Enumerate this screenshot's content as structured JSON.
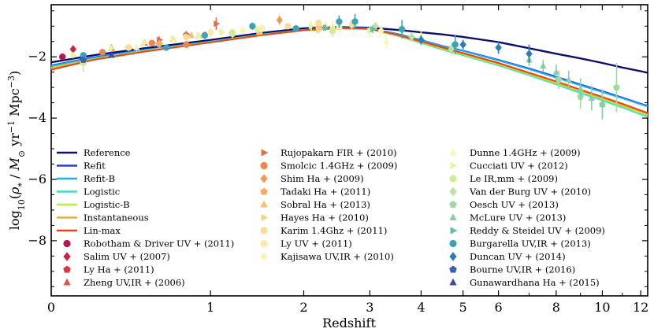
{
  "chart_data": {
    "type": "line",
    "title": "",
    "xlabel": "Redshift",
    "ylabel_parts": [
      "log",
      "10",
      "(",
      "ρ",
      "*",
      " / ",
      "M",
      "⊙",
      " yr",
      "−1",
      " Mpc",
      "−3",
      ")"
    ],
    "xscale": "log(1+z)",
    "xlim": [
      0,
      12.4
    ],
    "ylim": [
      -9.8,
      -0.3
    ],
    "xticks": [
      0,
      1,
      2,
      3,
      4,
      5,
      6,
      8,
      10,
      12
    ],
    "yticks": [
      -2,
      -4,
      -6,
      -8
    ],
    "ytick_labels": [
      "−2",
      "−4",
      "−6",
      "−8"
    ],
    "legend_position": "lower-left, three columns",
    "series": [
      {
        "name": "Reference",
        "color": "#0b0f6e",
        "width": 2.4,
        "points": [
          [
            0,
            -2.18
          ],
          [
            0.2,
            -1.95
          ],
          [
            0.5,
            -1.72
          ],
          [
            1,
            -1.45
          ],
          [
            1.5,
            -1.22
          ],
          [
            2,
            -1.07
          ],
          [
            2.5,
            -1.03
          ],
          [
            3,
            -1.05
          ],
          [
            3.5,
            -1.12
          ],
          [
            4,
            -1.2
          ],
          [
            4.5,
            -1.27
          ],
          [
            5,
            -1.35
          ],
          [
            6,
            -1.52
          ],
          [
            7,
            -1.72
          ],
          [
            8,
            -1.9
          ],
          [
            9,
            -2.05
          ],
          [
            10,
            -2.2
          ],
          [
            11,
            -2.35
          ],
          [
            12,
            -2.47
          ],
          [
            12.4,
            -2.52
          ]
        ]
      },
      {
        "name": "Refit",
        "color": "#1e3ee6",
        "width": 2,
        "points": [
          [
            0,
            -2.28
          ],
          [
            0.2,
            -2.02
          ],
          [
            0.5,
            -1.77
          ],
          [
            1,
            -1.5
          ],
          [
            1.5,
            -1.27
          ],
          [
            2,
            -1.12
          ],
          [
            2.5,
            -1.05
          ],
          [
            3,
            -1.07
          ],
          [
            3.5,
            -1.25
          ],
          [
            4,
            -1.45
          ],
          [
            4.5,
            -1.65
          ],
          [
            5,
            -1.8
          ],
          [
            6,
            -2.1
          ],
          [
            7,
            -2.38
          ],
          [
            8,
            -2.65
          ],
          [
            9,
            -2.9
          ],
          [
            10,
            -3.12
          ],
          [
            11,
            -3.33
          ],
          [
            12,
            -3.53
          ],
          [
            12.4,
            -3.6
          ]
        ]
      },
      {
        "name": "Refit-B",
        "color": "#1ab0f0",
        "width": 2,
        "points": [
          [
            0,
            -2.3
          ],
          [
            0.2,
            -2.04
          ],
          [
            0.5,
            -1.78
          ],
          [
            1,
            -1.5
          ],
          [
            1.5,
            -1.27
          ],
          [
            2,
            -1.12
          ],
          [
            2.5,
            -1.05
          ],
          [
            3,
            -1.07
          ],
          [
            3.5,
            -1.26
          ],
          [
            4,
            -1.46
          ],
          [
            4.5,
            -1.66
          ],
          [
            5,
            -1.81
          ],
          [
            6,
            -2.12
          ],
          [
            7,
            -2.4
          ],
          [
            8,
            -2.68
          ],
          [
            9,
            -2.93
          ],
          [
            10,
            -3.15
          ],
          [
            11,
            -3.35
          ],
          [
            12,
            -3.55
          ],
          [
            12.4,
            -3.62
          ]
        ]
      },
      {
        "name": "Logistic",
        "color": "#3fe0c0",
        "width": 2,
        "points": [
          [
            0,
            -2.35
          ],
          [
            0.2,
            -2.07
          ],
          [
            0.5,
            -1.8
          ],
          [
            1,
            -1.52
          ],
          [
            1.5,
            -1.28
          ],
          [
            2,
            -1.13
          ],
          [
            2.5,
            -1.07
          ],
          [
            3,
            -1.1
          ],
          [
            3.5,
            -1.31
          ],
          [
            4,
            -1.55
          ],
          [
            4.5,
            -1.77
          ],
          [
            5,
            -1.95
          ],
          [
            6,
            -2.28
          ],
          [
            7,
            -2.6
          ],
          [
            8,
            -2.9
          ],
          [
            9,
            -3.18
          ],
          [
            10,
            -3.42
          ],
          [
            11,
            -3.65
          ],
          [
            12,
            -3.88
          ],
          [
            12.4,
            -3.95
          ]
        ]
      },
      {
        "name": "Logistic-B",
        "color": "#b7f03a",
        "width": 2,
        "points": [
          [
            0,
            -2.36
          ],
          [
            0.2,
            -2.08
          ],
          [
            0.5,
            -1.81
          ],
          [
            1,
            -1.52
          ],
          [
            1.5,
            -1.28
          ],
          [
            2,
            -1.13
          ],
          [
            2.5,
            -1.07
          ],
          [
            3,
            -1.1
          ],
          [
            3.5,
            -1.3
          ],
          [
            4,
            -1.53
          ],
          [
            4.5,
            -1.74
          ],
          [
            5,
            -1.92
          ],
          [
            6,
            -2.24
          ],
          [
            7,
            -2.56
          ],
          [
            8,
            -2.86
          ],
          [
            9,
            -3.12
          ],
          [
            10,
            -3.37
          ],
          [
            11,
            -3.6
          ],
          [
            12,
            -3.82
          ],
          [
            12.4,
            -3.9
          ]
        ]
      },
      {
        "name": "Instantaneous",
        "color": "#f2b020",
        "width": 2,
        "points": [
          [
            0,
            -2.38
          ],
          [
            0.2,
            -2.09
          ],
          [
            0.5,
            -1.82
          ],
          [
            1,
            -1.53
          ],
          [
            1.5,
            -1.29
          ],
          [
            2,
            -1.14
          ],
          [
            2.5,
            -1.07
          ],
          [
            3,
            -1.09
          ],
          [
            3.5,
            -1.29
          ],
          [
            4,
            -1.52
          ],
          [
            4.5,
            -1.72
          ],
          [
            5,
            -1.9
          ],
          [
            6,
            -2.22
          ],
          [
            7,
            -2.54
          ],
          [
            8,
            -2.83
          ],
          [
            9,
            -3.1
          ],
          [
            10,
            -3.34
          ],
          [
            11,
            -3.57
          ],
          [
            12,
            -3.78
          ],
          [
            12.4,
            -3.86
          ]
        ]
      },
      {
        "name": "Lin-max",
        "color": "#e84418",
        "width": 2,
        "points": [
          [
            0,
            -2.42
          ],
          [
            0.2,
            -2.1
          ],
          [
            0.5,
            -1.83
          ],
          [
            1,
            -1.53
          ],
          [
            1.5,
            -1.29
          ],
          [
            2,
            -1.13
          ],
          [
            2.5,
            -1.06
          ],
          [
            3,
            -1.08
          ],
          [
            3.5,
            -1.28
          ],
          [
            4,
            -1.5
          ],
          [
            4.5,
            -1.7
          ],
          [
            5,
            -1.88
          ],
          [
            6,
            -2.2
          ],
          [
            7,
            -2.52
          ],
          [
            8,
            -2.8
          ],
          [
            9,
            -3.07
          ],
          [
            10,
            -3.31
          ],
          [
            11,
            -3.53
          ],
          [
            12,
            -3.75
          ],
          [
            12.4,
            -3.83
          ]
        ]
      }
    ],
    "observations": [
      {
        "name": "Robotham & Driver UV + (2011)",
        "marker": "circle",
        "color": "#b5174a",
        "points": [
          [
            0.05,
            -2.0,
            0.1
          ]
        ]
      },
      {
        "name": "Salim UV + (2007)",
        "marker": "diamond",
        "color": "#c8243f",
        "points": [
          [
            0.1,
            -1.75,
            0.08
          ]
        ]
      },
      {
        "name": "Ly Ha + (2011)",
        "marker": "pentagon",
        "color": "#d63a44",
        "points": [
          [
            0.8,
            -1.3,
            0.1
          ]
        ]
      },
      {
        "name": "Zheng UV,IR + (2006)",
        "marker": "triangle",
        "color": "#e25545",
        "points": [
          [
            0.3,
            -1.72,
            0.12
          ],
          [
            0.5,
            -1.55,
            0.1
          ],
          [
            0.7,
            -1.42,
            0.1
          ],
          [
            0.9,
            -1.32,
            0.1
          ]
        ]
      },
      {
        "name": "Rujopakarn FIR + (2010)",
        "marker": "triangle-right",
        "color": "#ec6a44",
        "points": [
          [
            0.6,
            -1.45,
            0.12
          ],
          [
            0.8,
            -1.3,
            0.15
          ],
          [
            1.05,
            -0.92,
            0.2
          ]
        ]
      },
      {
        "name": "Smolcic 1.4GHz + (2009)",
        "marker": "circle",
        "color": "#f0854c",
        "points": [
          [
            0.25,
            -1.85,
            0.1
          ],
          [
            0.55,
            -1.55,
            0.1
          ],
          [
            0.8,
            -1.6,
            0.12
          ]
        ]
      },
      {
        "name": "Shim Ha + (2009)",
        "marker": "diamond",
        "color": "#f59a55",
        "points": [
          [
            1.7,
            -0.8,
            0.15
          ]
        ]
      },
      {
        "name": "Tadaki Ha + (2011)",
        "marker": "pentagon",
        "color": "#f7ad64",
        "points": [
          [
            0.6,
            -1.58,
            0.12
          ],
          [
            2.2,
            -1.05,
            0.1
          ]
        ]
      },
      {
        "name": "Sobral Ha + (2013)",
        "marker": "triangle",
        "color": "#f9bf73",
        "points": [
          [
            0.4,
            -1.7,
            0.1
          ],
          [
            0.84,
            -1.3,
            0.1
          ],
          [
            1.47,
            -1.2,
            0.1
          ],
          [
            2.23,
            -1.05,
            0.1
          ]
        ]
      },
      {
        "name": "Hayes Ha + (2010)",
        "marker": "triangle-right",
        "color": "#fbcf85",
        "points": [
          [
            2.2,
            -1.12,
            0.12
          ]
        ]
      },
      {
        "name": "Karim 1.4Ghz + (2011)",
        "marker": "circle",
        "color": "#fcdd95",
        "points": [
          [
            0.4,
            -1.7,
            0.1
          ],
          [
            0.8,
            -1.35,
            0.1
          ],
          [
            1.2,
            -1.2,
            0.1
          ],
          [
            1.8,
            -1.0,
            0.1
          ],
          [
            2.2,
            -0.9,
            0.12
          ],
          [
            2.7,
            -0.95,
            0.15
          ]
        ]
      },
      {
        "name": "Ly UV + (2011)",
        "marker": "circle",
        "color": "#fde9a8",
        "points": [
          [
            1.0,
            -1.2,
            0.15
          ],
          [
            1.5,
            -1.08,
            0.15
          ],
          [
            2.5,
            -1.05,
            0.15
          ]
        ]
      },
      {
        "name": "Kajisawa UV,IR + (2010)",
        "marker": "diamond",
        "color": "#fbf3b5",
        "points": [
          [
            0.7,
            -1.45,
            0.12
          ],
          [
            1.3,
            -1.15,
            0.12
          ],
          [
            2.3,
            -1.0,
            0.15
          ],
          [
            3.2,
            -1.15,
            0.2
          ]
        ]
      },
      {
        "name": "Dunne 1.4GHz + (2009)",
        "marker": "triangle",
        "color": "#f5f8ad",
        "points": [
          [
            0.45,
            -1.7,
            0.1
          ],
          [
            0.9,
            -1.35,
            0.12
          ],
          [
            1.5,
            -1.1,
            0.15
          ],
          [
            2.4,
            -1.0,
            0.2
          ],
          [
            3.3,
            -1.5,
            0.25
          ]
        ]
      },
      {
        "name": "Cucciati UV + (2012)",
        "marker": "triangle-right",
        "color": "#e8f5a0",
        "points": [
          [
            0.1,
            -1.95,
            0.1
          ],
          [
            0.3,
            -1.72,
            0.1
          ],
          [
            0.5,
            -1.55,
            0.1
          ],
          [
            0.7,
            -1.4,
            0.1
          ],
          [
            0.9,
            -1.3,
            0.1
          ],
          [
            1.1,
            -1.2,
            0.12
          ],
          [
            1.45,
            -1.1,
            0.12
          ],
          [
            2.1,
            -1.0,
            0.15
          ],
          [
            3.0,
            -1.15,
            0.2
          ],
          [
            4.0,
            -1.4,
            0.25
          ]
        ]
      },
      {
        "name": "Le IR,mm + (2009)",
        "marker": "circle",
        "color": "#d0ec98",
        "points": [
          [
            0.15,
            -2.2,
            0.3
          ],
          [
            1.2,
            -1.25,
            0.15
          ],
          [
            2.4,
            -1.15,
            0.2
          ]
        ]
      },
      {
        "name": "Van der Burg UV + (2010)",
        "marker": "diamond",
        "color": "#b8e3a0",
        "points": [
          [
            3.1,
            -1.0,
            0.12
          ],
          [
            3.8,
            -1.35,
            0.15
          ],
          [
            4.7,
            -1.75,
            0.2
          ]
        ]
      },
      {
        "name": "Oesch UV + (2013)",
        "marker": "pentagon",
        "color": "#a0d9a4",
        "points": [
          [
            8.1,
            -2.75,
            0.3
          ],
          [
            9.0,
            -3.3,
            0.4
          ],
          [
            10.0,
            -3.55,
            0.5
          ],
          [
            10.7,
            -3.0,
            0.8
          ]
        ]
      },
      {
        "name": "McLure UV + (2013)",
        "marker": "triangle",
        "color": "#86cea5",
        "points": [
          [
            7.0,
            -2.1,
            0.2
          ],
          [
            7.5,
            -2.3,
            0.2
          ],
          [
            8.0,
            -2.5,
            0.25
          ],
          [
            8.5,
            -2.75,
            0.3
          ],
          [
            9.0,
            -3.05,
            0.35
          ],
          [
            9.5,
            -3.35,
            0.4
          ],
          [
            10.0,
            -3.55,
            0.45
          ]
        ]
      },
      {
        "name": "Reddy & Steidel UV + (2009)",
        "marker": "triangle-right",
        "color": "#5ebea7",
        "points": [
          [
            2.3,
            -1.05,
            0.1
          ],
          [
            3.05,
            -1.1,
            0.12
          ]
        ]
      },
      {
        "name": "Burgarella UV,IR + (2013)",
        "marker": "circle",
        "color": "#3ea2b5",
        "points": [
          [
            0.15,
            -1.95,
            0.1
          ],
          [
            0.65,
            -1.7,
            0.1
          ],
          [
            0.95,
            -1.3,
            0.12
          ],
          [
            1.4,
            -1.0,
            0.12
          ],
          [
            1.9,
            -1.08,
            0.12
          ],
          [
            2.5,
            -0.85,
            0.2
          ],
          [
            2.75,
            -0.85,
            0.25
          ],
          [
            3.6,
            -1.1,
            0.3
          ],
          [
            4.8,
            -1.6,
            0.3
          ]
        ]
      },
      {
        "name": "Duncan UV + (2014)",
        "marker": "diamond",
        "color": "#2b7cba",
        "points": [
          [
            4.0,
            -1.45,
            0.15
          ],
          [
            5.0,
            -1.6,
            0.15
          ],
          [
            6.0,
            -1.7,
            0.2
          ],
          [
            7.0,
            -1.9,
            0.3
          ]
        ]
      },
      {
        "name": "Bourne UV,IR + (2016)",
        "marker": "pentagon",
        "color": "#3f5fb3",
        "points": [
          [
            0.15,
            -2.1,
            0.1
          ]
        ]
      },
      {
        "name": "Gunawardhana Ha + (2015)",
        "marker": "triangle",
        "color": "#3f4aa6",
        "points": [
          [
            0.3,
            -1.95,
            0.08
          ]
        ]
      }
    ]
  }
}
